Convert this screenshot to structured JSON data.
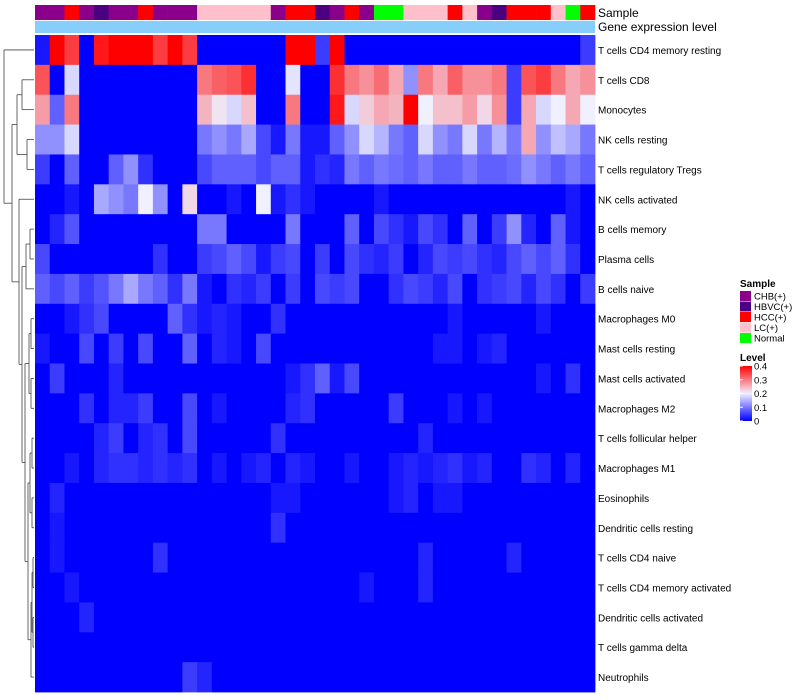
{
  "chart_data": {
    "type": "heatmap",
    "title": "",
    "annotation_tracks": [
      {
        "name": "Sample",
        "label": "Sample"
      },
      {
        "name": "Gene expression level",
        "label": "Gene expression level"
      }
    ],
    "sample_groups": [
      "CHB(+)",
      "CHB(+)",
      "HCC(+)",
      "CHB(+)",
      "HBVC(+)",
      "CHB(+)",
      "CHB(+)",
      "HCC(+)",
      "CHB(+)",
      "CHB(+)",
      "CHB(+)",
      "LC(+)",
      "LC(+)",
      "LC(+)",
      "LC(+)",
      "LC(+)",
      "CHB(+)",
      "HCC(+)",
      "HCC(+)",
      "HBVC(+)",
      "CHB(+)",
      "HCC(+)",
      "CHB(+)",
      "Normal",
      "Normal",
      "LC(+)",
      "LC(+)",
      "LC(+)",
      "HCC(+)",
      "LC(+)",
      "CHB(+)",
      "HBVC(+)",
      "HCC(+)",
      "HCC(+)",
      "HCC(+)",
      "LC(+)",
      "Normal",
      "HCC(+)"
    ],
    "rows": [
      "T cells CD4 memory resting",
      "T cells CD8",
      "Monocytes",
      "NK cells resting",
      "T cells regulatory  Tregs",
      "NK cells activated",
      "B cells memory",
      "Plasma cells",
      "B cells naive",
      "Macrophages M0",
      "Mast cells resting",
      "Mast cells activated",
      "Macrophages M2",
      "T cells follicular helper",
      "Macrophages M1",
      "Eosinophils",
      "Dendritic cells resting",
      "T cells CD4 naive",
      "T cells CD4 memory activated",
      "Dendritic cells activated",
      "T cells gamma delta",
      "Neutrophils"
    ],
    "values": [
      [
        0.02,
        0.4,
        0.35,
        0.0,
        0.38,
        0.4,
        0.4,
        0.4,
        0.35,
        0.4,
        0.35,
        0.0,
        0.0,
        0.0,
        0.0,
        0.0,
        0.0,
        0.4,
        0.4,
        0.05,
        0.4,
        0.0,
        0.0,
        0.0,
        0.0,
        0.0,
        0.0,
        0.0,
        0.0,
        0.0,
        0.0,
        0.0,
        0.0,
        0.0,
        0.0,
        0.0,
        0.0,
        0.05
      ],
      [
        0.33,
        0.0,
        0.18,
        0.0,
        0.0,
        0.0,
        0.0,
        0.0,
        0.0,
        0.0,
        0.0,
        0.3,
        0.32,
        0.33,
        0.36,
        0.0,
        0.0,
        0.19,
        0.0,
        0.0,
        0.36,
        0.3,
        0.28,
        0.31,
        0.26,
        0.12,
        0.3,
        0.26,
        0.32,
        0.28,
        0.28,
        0.3,
        0.05,
        0.33,
        0.35,
        0.3,
        0.26,
        0.28
      ],
      [
        0.27,
        0.08,
        0.3,
        0.0,
        0.0,
        0.0,
        0.0,
        0.0,
        0.0,
        0.0,
        0.0,
        0.25,
        0.21,
        0.18,
        0.24,
        0.0,
        0.0,
        0.3,
        0.0,
        0.0,
        0.38,
        0.18,
        0.23,
        0.26,
        0.25,
        0.4,
        0.2,
        0.24,
        0.24,
        0.27,
        0.22,
        0.28,
        0.05,
        0.26,
        0.18,
        0.2,
        0.26,
        0.2
      ],
      [
        0.12,
        0.12,
        0.18,
        0.0,
        0.0,
        0.0,
        0.0,
        0.0,
        0.0,
        0.0,
        0.0,
        0.1,
        0.12,
        0.1,
        0.14,
        0.06,
        0.02,
        0.1,
        0.02,
        0.02,
        0.08,
        0.12,
        0.18,
        0.15,
        0.1,
        0.08,
        0.18,
        0.12,
        0.1,
        0.18,
        0.1,
        0.15,
        0.1,
        0.26,
        0.12,
        0.16,
        0.14,
        0.1
      ],
      [
        0.05,
        0.0,
        0.08,
        0.0,
        0.0,
        0.08,
        0.12,
        0.04,
        0.0,
        0.0,
        0.0,
        0.06,
        0.08,
        0.08,
        0.08,
        0.06,
        0.08,
        0.08,
        0.02,
        0.04,
        0.03,
        0.1,
        0.08,
        0.1,
        0.09,
        0.08,
        0.1,
        0.08,
        0.08,
        0.1,
        0.08,
        0.08,
        0.09,
        0.12,
        0.1,
        0.08,
        0.1,
        0.08
      ],
      [
        0.0,
        0.0,
        0.02,
        0.0,
        0.14,
        0.12,
        0.1,
        0.2,
        0.12,
        0.0,
        0.22,
        0.0,
        0.0,
        0.02,
        0.0,
        0.2,
        0.02,
        0.04,
        0.02,
        0.0,
        0.0,
        0.0,
        0.0,
        0.02,
        0.0,
        0.0,
        0.0,
        0.0,
        0.0,
        0.0,
        0.0,
        0.0,
        0.0,
        0.0,
        0.0,
        0.0,
        0.02,
        0.0
      ],
      [
        0.0,
        0.03,
        0.07,
        0.0,
        0.0,
        0.0,
        0.0,
        0.0,
        0.0,
        0.0,
        0.0,
        0.1,
        0.1,
        0.0,
        0.0,
        0.0,
        0.0,
        0.1,
        0.0,
        0.0,
        0.0,
        0.08,
        0.0,
        0.06,
        0.04,
        0.02,
        0.06,
        0.04,
        0.0,
        0.08,
        0.0,
        0.05,
        0.12,
        0.03,
        0.0,
        0.08,
        0.02,
        0.0
      ],
      [
        0.06,
        0.0,
        0.0,
        0.0,
        0.0,
        0.0,
        0.0,
        0.0,
        0.04,
        0.0,
        0.0,
        0.05,
        0.06,
        0.08,
        0.06,
        0.02,
        0.05,
        0.06,
        0.0,
        0.05,
        0.0,
        0.06,
        0.04,
        0.03,
        0.05,
        0.0,
        0.03,
        0.06,
        0.05,
        0.06,
        0.04,
        0.03,
        0.06,
        0.08,
        0.06,
        0.08,
        0.04,
        0.0
      ],
      [
        0.08,
        0.06,
        0.08,
        0.05,
        0.07,
        0.1,
        0.14,
        0.1,
        0.08,
        0.04,
        0.1,
        0.02,
        0.0,
        0.04,
        0.03,
        0.05,
        0.0,
        0.05,
        0.0,
        0.06,
        0.05,
        0.06,
        0.0,
        0.0,
        0.04,
        0.06,
        0.05,
        0.03,
        0.06,
        0.0,
        0.04,
        0.05,
        0.06,
        0.03,
        0.06,
        0.04,
        0.0,
        0.05
      ],
      [
        0.0,
        0.0,
        0.02,
        0.04,
        0.06,
        0.0,
        0.0,
        0.0,
        0.0,
        0.08,
        0.04,
        0.02,
        0.03,
        0.02,
        0.0,
        0.0,
        0.04,
        0.0,
        0.0,
        0.0,
        0.0,
        0.0,
        0.0,
        0.0,
        0.0,
        0.0,
        0.0,
        0.0,
        0.02,
        0.0,
        0.0,
        0.0,
        0.0,
        0.0,
        0.02,
        0.0,
        0.0,
        0.0
      ],
      [
        0.02,
        0.0,
        0.0,
        0.06,
        0.0,
        0.05,
        0.0,
        0.06,
        0.0,
        0.0,
        0.08,
        0.0,
        0.03,
        0.02,
        0.0,
        0.06,
        0.0,
        0.0,
        0.0,
        0.0,
        0.0,
        0.0,
        0.0,
        0.0,
        0.0,
        0.0,
        0.0,
        0.02,
        0.02,
        0.0,
        0.02,
        0.03,
        0.0,
        0.0,
        0.0,
        0.0,
        0.0,
        0.0
      ],
      [
        0.0,
        0.05,
        0.0,
        0.0,
        0.0,
        0.03,
        0.0,
        0.0,
        0.0,
        0.0,
        0.0,
        0.0,
        0.0,
        0.0,
        0.0,
        0.0,
        0.0,
        0.02,
        0.04,
        0.08,
        0.02,
        0.06,
        0.0,
        0.0,
        0.0,
        0.0,
        0.0,
        0.0,
        0.0,
        0.0,
        0.0,
        0.0,
        0.0,
        0.0,
        0.02,
        0.0,
        0.04,
        0.0
      ],
      [
        0.0,
        0.0,
        0.0,
        0.04,
        0.0,
        0.03,
        0.03,
        0.05,
        0.0,
        0.0,
        0.06,
        0.0,
        0.02,
        0.0,
        0.0,
        0.0,
        0.0,
        0.03,
        0.04,
        0.0,
        0.0,
        0.0,
        0.0,
        0.0,
        0.05,
        0.0,
        0.0,
        0.0,
        0.02,
        0.0,
        0.02,
        0.0,
        0.0,
        0.0,
        0.0,
        0.0,
        0.0,
        0.0
      ],
      [
        0.0,
        0.0,
        0.0,
        0.0,
        0.03,
        0.05,
        0.0,
        0.03,
        0.04,
        0.0,
        0.06,
        0.0,
        0.0,
        0.0,
        0.0,
        0.0,
        0.04,
        0.0,
        0.0,
        0.0,
        0.0,
        0.0,
        0.0,
        0.0,
        0.0,
        0.0,
        0.03,
        0.0,
        0.0,
        0.0,
        0.0,
        0.0,
        0.0,
        0.0,
        0.0,
        0.0,
        0.0,
        0.0
      ],
      [
        0.0,
        0.0,
        0.02,
        0.0,
        0.03,
        0.04,
        0.04,
        0.03,
        0.04,
        0.03,
        0.04,
        0.0,
        0.02,
        0.0,
        0.02,
        0.03,
        0.0,
        0.03,
        0.02,
        0.0,
        0.0,
        0.02,
        0.0,
        0.0,
        0.02,
        0.03,
        0.02,
        0.03,
        0.04,
        0.02,
        0.03,
        0.0,
        0.0,
        0.04,
        0.03,
        0.0,
        0.03,
        0.0
      ],
      [
        0.0,
        0.03,
        0.0,
        0.0,
        0.0,
        0.0,
        0.0,
        0.0,
        0.0,
        0.0,
        0.0,
        0.0,
        0.0,
        0.0,
        0.0,
        0.0,
        0.02,
        0.02,
        0.0,
        0.0,
        0.0,
        0.0,
        0.0,
        0.0,
        0.02,
        0.03,
        0.0,
        0.02,
        0.02,
        0.0,
        0.0,
        0.0,
        0.0,
        0.0,
        0.0,
        0.0,
        0.0,
        0.0
      ],
      [
        0.0,
        0.02,
        0.0,
        0.0,
        0.0,
        0.0,
        0.0,
        0.0,
        0.0,
        0.0,
        0.0,
        0.0,
        0.0,
        0.0,
        0.0,
        0.0,
        0.04,
        0.0,
        0.0,
        0.0,
        0.0,
        0.0,
        0.0,
        0.0,
        0.0,
        0.0,
        0.0,
        0.0,
        0.0,
        0.0,
        0.0,
        0.0,
        0.0,
        0.0,
        0.0,
        0.0,
        0.0,
        0.0
      ],
      [
        0.0,
        0.02,
        0.0,
        0.0,
        0.0,
        0.0,
        0.0,
        0.0,
        0.04,
        0.0,
        0.0,
        0.0,
        0.0,
        0.0,
        0.0,
        0.0,
        0.0,
        0.0,
        0.0,
        0.0,
        0.0,
        0.0,
        0.0,
        0.0,
        0.0,
        0.0,
        0.03,
        0.0,
        0.0,
        0.0,
        0.0,
        0.0,
        0.03,
        0.0,
        0.0,
        0.0,
        0.0,
        0.0
      ],
      [
        0.0,
        0.0,
        0.02,
        0.0,
        0.0,
        0.0,
        0.0,
        0.0,
        0.0,
        0.0,
        0.0,
        0.0,
        0.0,
        0.0,
        0.0,
        0.0,
        0.0,
        0.0,
        0.0,
        0.0,
        0.0,
        0.0,
        0.02,
        0.0,
        0.0,
        0.0,
        0.03,
        0.0,
        0.0,
        0.0,
        0.0,
        0.0,
        0.0,
        0.0,
        0.0,
        0.0,
        0.0,
        0.0
      ],
      [
        0.0,
        0.0,
        0.0,
        0.03,
        0.0,
        0.0,
        0.0,
        0.0,
        0.0,
        0.0,
        0.0,
        0.0,
        0.0,
        0.0,
        0.0,
        0.0,
        0.0,
        0.0,
        0.0,
        0.0,
        0.0,
        0.0,
        0.0,
        0.0,
        0.0,
        0.0,
        0.0,
        0.0,
        0.0,
        0.0,
        0.0,
        0.0,
        0.0,
        0.0,
        0.0,
        0.0,
        0.0,
        0.0
      ],
      [
        0.0,
        0.0,
        0.0,
        0.0,
        0.0,
        0.0,
        0.0,
        0.0,
        0.0,
        0.0,
        0.0,
        0.0,
        0.0,
        0.0,
        0.0,
        0.0,
        0.0,
        0.0,
        0.0,
        0.0,
        0.0,
        0.0,
        0.0,
        0.0,
        0.0,
        0.0,
        0.0,
        0.0,
        0.0,
        0.0,
        0.0,
        0.0,
        0.0,
        0.0,
        0.0,
        0.0,
        0.0,
        0.0
      ],
      [
        0.0,
        0.0,
        0.0,
        0.0,
        0.0,
        0.0,
        0.0,
        0.0,
        0.0,
        0.0,
        0.05,
        0.03,
        0.0,
        0.0,
        0.0,
        0.0,
        0.0,
        0.0,
        0.0,
        0.0,
        0.0,
        0.0,
        0.0,
        0.0,
        0.0,
        0.0,
        0.0,
        0.0,
        0.0,
        0.0,
        0.0,
        0.0,
        0.0,
        0.0,
        0.0,
        0.0,
        0.0,
        0.0
      ]
    ],
    "color_scale": {
      "min": 0,
      "max": 0.4,
      "stops": [
        {
          "value": 0,
          "color": "#0000ff"
        },
        {
          "value": 0.2,
          "color": "#f0f0ff"
        },
        {
          "value": 0.4,
          "color": "#ff0000"
        }
      ]
    },
    "legend": {
      "position": "right",
      "sample_title": "Sample",
      "sample_entries": [
        {
          "label": "CHB(+)",
          "color": "#8b008b"
        },
        {
          "label": "HBVC(+)",
          "color": "#4b0082"
        },
        {
          "label": "HCC(+)",
          "color": "#ff0000"
        },
        {
          "label": "LC(+)",
          "color": "#ffc0cb"
        },
        {
          "label": "Normal",
          "color": "#00ff00"
        }
      ],
      "level_title": "Level",
      "level_ticks": [
        "0.4",
        "0.3",
        "0.2",
        "0.1",
        "0"
      ],
      "level_tick_values": [
        0.4,
        0.3,
        0.2,
        0.1,
        0
      ]
    },
    "expression_bar_color": "#87cefa",
    "dendrogram": "left (rows clustered)"
  }
}
